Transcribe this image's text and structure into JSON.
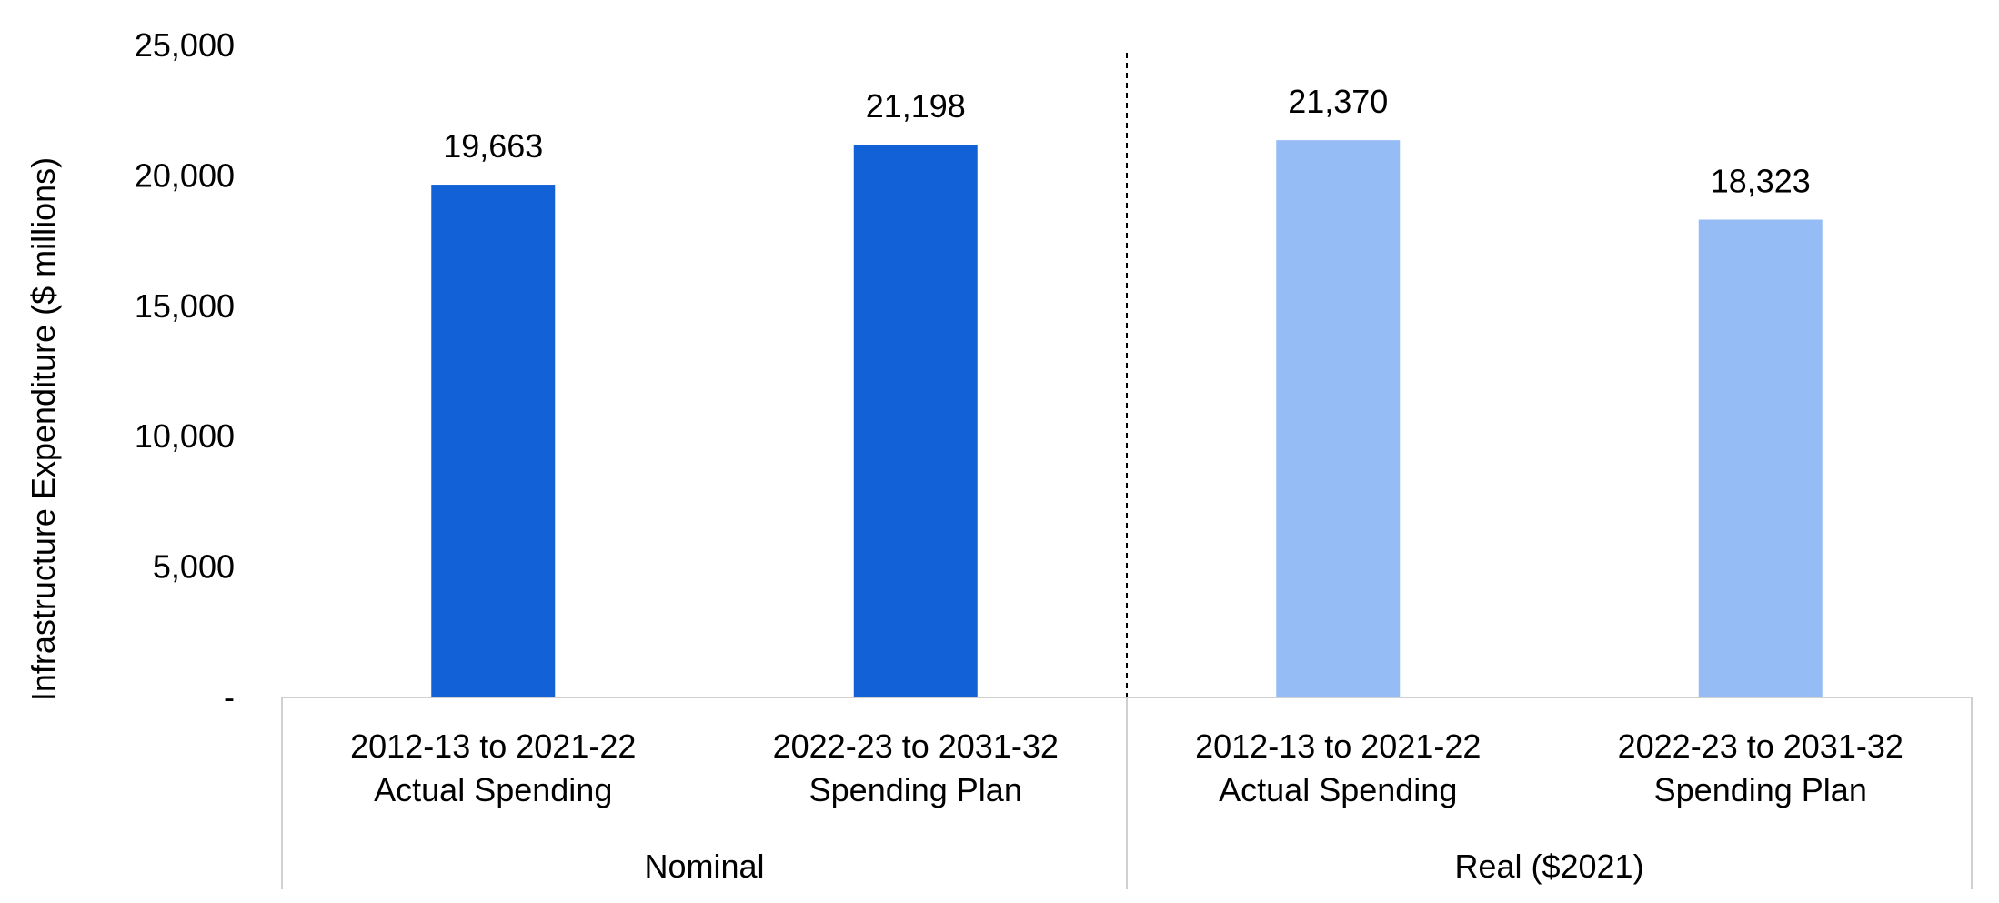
{
  "chart_data": {
    "type": "bar",
    "title": "",
    "ylabel": "Infrastructure Expenditure ($ millions)",
    "xlabel": "",
    "ylim": [
      0,
      25000
    ],
    "yticks": [
      0,
      5000,
      10000,
      15000,
      20000,
      25000
    ],
    "ytick_labels": [
      "-",
      "5,000",
      "10,000",
      "15,000",
      "20,000",
      "25,000"
    ],
    "grid": false,
    "groups": [
      {
        "name": "Nominal",
        "color": "#1261d6",
        "bars": [
          {
            "category": [
              "2012-13 to 2021-22",
              "Actual Spending"
            ],
            "value": 19663,
            "label": "19,663"
          },
          {
            "category": [
              "2022-23 to 2031-32",
              "Spending Plan"
            ],
            "value": 21198,
            "label": "21,198"
          }
        ]
      },
      {
        "name": "Real ($2021)",
        "color": "#96bcf6",
        "bars": [
          {
            "category": [
              "2012-13 to 2021-22",
              "Actual Spending"
            ],
            "value": 21370,
            "label": "21,370"
          },
          {
            "category": [
              "2022-23 to 2031-32",
              "Spending Plan"
            ],
            "value": 18323,
            "label": "18,323"
          }
        ]
      }
    ]
  }
}
